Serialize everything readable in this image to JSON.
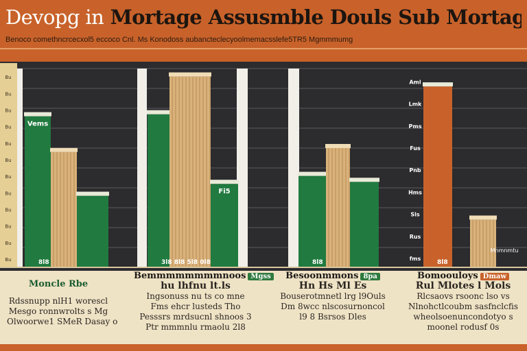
{
  "header": {
    "title_lead": "Devopg in",
    "title_rest": "Mortage Assusmble",
    "title_tail": "Douls Sub Mortag",
    "subtitle": "Benoco comethncrcecxol5 eccoco   Cnl. Ms Konodoss  aubancteclecyoolmemacsslefe5TR5 Mgmmmumg"
  },
  "chart_data": {
    "type": "bar",
    "title": "Devopg in Mortage Assusmble Douls Sub Mortag",
    "xlabel": "",
    "ylabel": "",
    "ylim": [
      0,
      100
    ],
    "grid": true,
    "groups": [
      {
        "name": "Moncle Rbe",
        "bars": [
          {
            "label": "Vems",
            "value": 76,
            "color": "green"
          },
          {
            "label": "",
            "value": 58,
            "color": "tan"
          },
          {
            "label": "",
            "value": 36,
            "color": "green"
          }
        ],
        "value_label": "8l8"
      },
      {
        "name": "Bemmmmmmmmnoos",
        "bars": [
          {
            "label": "",
            "value": 77,
            "color": "green"
          },
          {
            "label": "",
            "value": 96,
            "color": "tan"
          },
          {
            "label": "Fi5",
            "value": 42,
            "color": "green"
          }
        ],
        "value_label": "3l8 8l8 5l8 0l8"
      },
      {
        "name": "Besoonmmons",
        "bars": [
          {
            "label": "",
            "value": 46,
            "color": "green"
          },
          {
            "label": "",
            "value": 60,
            "color": "tan"
          },
          {
            "label": "",
            "value": 43,
            "color": "green"
          }
        ],
        "value_label": "8l8"
      },
      {
        "name": "Bomoouloys",
        "bars": [
          {
            "label": "",
            "value": 91,
            "color": "orange"
          },
          {
            "label": "",
            "value": 24,
            "color": "tan"
          }
        ],
        "value_label": "8l8"
      }
    ],
    "axis_tick_labels": [
      "Bu",
      "Bu",
      "Bu",
      "Bu",
      "Bu",
      "Bu",
      "Bu",
      "Bu",
      "Bu",
      "Bu",
      "Bu",
      "Bu"
    ],
    "right_tick_labels": [
      "Aml",
      "Lmk",
      "Pms",
      "Fus",
      "Pnb",
      "Hms",
      "Sls",
      "Rus",
      "fms"
    ],
    "annotation": "Mnmnmtu"
  },
  "cards": [
    {
      "title": "Moncle Rbe",
      "tag": "",
      "lines": [
        "Rdssnupp nlH1 worescl",
        "Mesgo ronnwrolts s Mg",
        "Olwoorwe1 SMeR Dasay o"
      ]
    },
    {
      "title": "Bemmmmmmmmnoos",
      "tag": "Mgss",
      "lines": [
        "hu lhfnu lt.ls",
        "Ingsonuss nu ts co mne",
        "Fms ehcr lusteds Tho",
        "Pesssrs mrdsucnl shnoos 3",
        "Ptr mmmnlu rmaolu 2l8"
      ]
    },
    {
      "title": "Besoonmmons",
      "tag": "8pa",
      "lines": [
        "Hn Hs Ml Es",
        "Bouserotmnetl lrg l9Ouls",
        "Dm 8wcc nlscosurnoncol",
        "l9 8 Bsrsos Dles"
      ]
    },
    {
      "title": "Bomoouloys",
      "tag": "Dmaw",
      "lines": [
        "Rul Mlotes l Mols",
        "Rlcsaovs rsoonc lso vs",
        "Nlnohctlcoubm sasfnclcfis",
        "wheolsoenuncondotyo s",
        "moonel rodusf 0s"
      ]
    }
  ],
  "colors": {
    "header": "#c8622a",
    "plot_bg": "#2c2b2e",
    "green": "#217a3f",
    "tan": "#d9b27b",
    "orange": "#c8622a",
    "panel": "#efe3c6"
  }
}
